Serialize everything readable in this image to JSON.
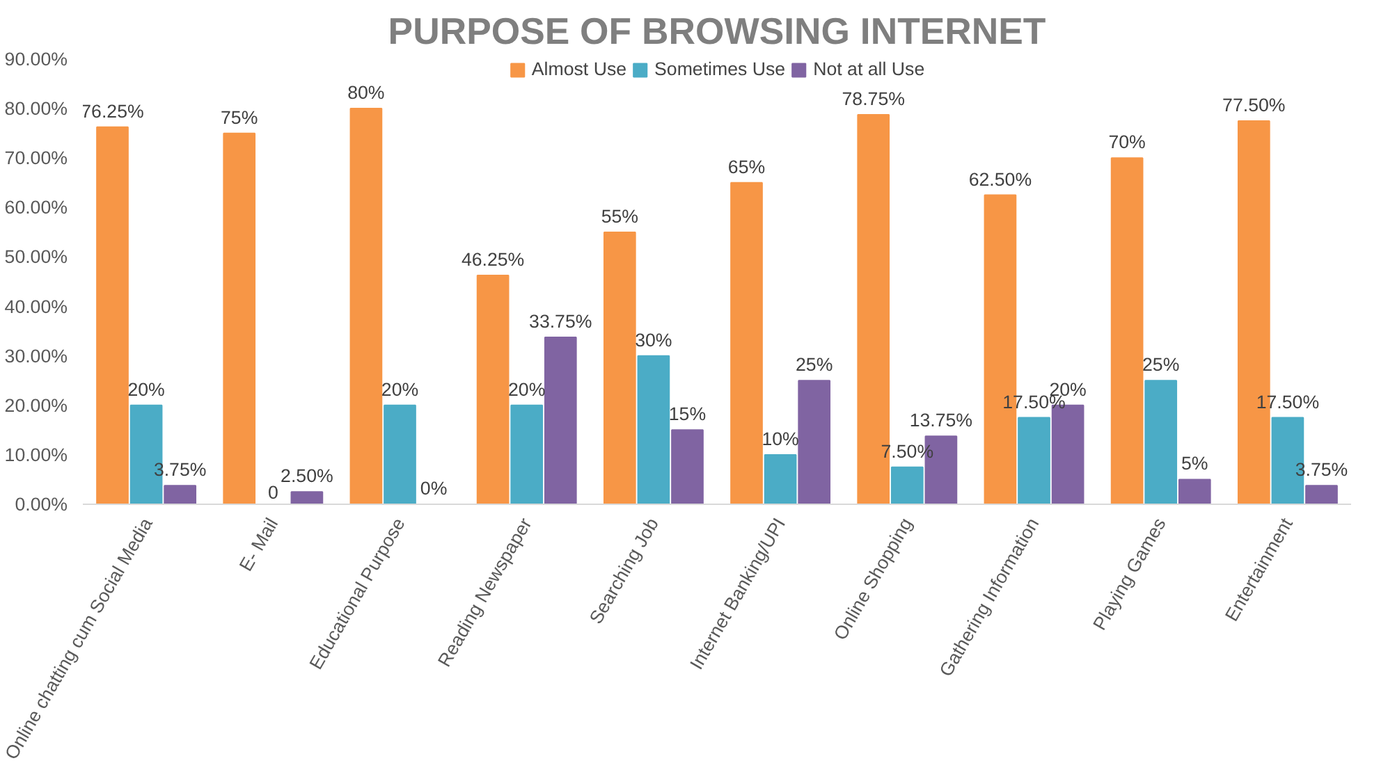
{
  "chart_data": {
    "type": "bar",
    "title": "PURPOSE OF BROWSING INTERNET",
    "categories": [
      "Online chatting cum Social Media",
      "E- Mail",
      "Educational Purpose",
      "Reading Newspaper",
      "Searching Job",
      "Internet Banking/UPI",
      "Online Shopping",
      "Gathering Information",
      "Playing Games",
      "Entertainment"
    ],
    "series": [
      {
        "name": "Almost Use",
        "color": "#f79646",
        "values": [
          76.25,
          75,
          80,
          46.25,
          55,
          65,
          78.75,
          62.5,
          70,
          77.5
        ],
        "value_labels": [
          "76.25%",
          "75%",
          "80%",
          "46.25%",
          "55%",
          "65%",
          "78.75%",
          "62.50%",
          "70%",
          "77.50%"
        ]
      },
      {
        "name": "Sometimes Use",
        "color": "#4bacc6",
        "values": [
          20,
          0,
          20,
          20,
          30,
          10,
          7.5,
          17.5,
          25,
          17.5
        ],
        "value_labels": [
          "20%",
          "0",
          "20%",
          "20%",
          "30%",
          "10%",
          "7.50%",
          "17.50%",
          "25%",
          "17.50%"
        ]
      },
      {
        "name": "Not at all Use",
        "color": "#8064a2",
        "values": [
          3.75,
          2.5,
          0,
          33.75,
          15,
          25,
          13.75,
          20,
          5,
          3.75
        ],
        "value_labels": [
          "3.75%",
          "2.50%",
          "0%",
          "33.75%",
          "15%",
          "25%",
          "13.75%",
          "20%",
          "5%",
          "3.75%"
        ]
      }
    ],
    "ylim": [
      0,
      90
    ],
    "yticks": [
      {
        "value": 0,
        "label": "0.00%"
      },
      {
        "value": 10,
        "label": "10.00%"
      },
      {
        "value": 20,
        "label": "20.00%"
      },
      {
        "value": 30,
        "label": "30.00%"
      },
      {
        "value": 40,
        "label": "40.00%"
      },
      {
        "value": 50,
        "label": "50.00%"
      },
      {
        "value": 60,
        "label": "60.00%"
      },
      {
        "value": 70,
        "label": "70.00%"
      },
      {
        "value": 80,
        "label": "80.00%"
      },
      {
        "value": 90,
        "label": "90.00%"
      }
    ],
    "legend": "top",
    "grid": false
  }
}
